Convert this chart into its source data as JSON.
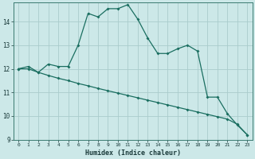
{
  "xlabel": "Humidex (Indice chaleur)",
  "bg_color": "#cce8e8",
  "line_color": "#1a6e60",
  "grid_color": "#aacccc",
  "xlim": [
    -0.5,
    23.5
  ],
  "ylim": [
    9.0,
    14.8
  ],
  "yticks": [
    9,
    10,
    11,
    12,
    13,
    14
  ],
  "xticks": [
    0,
    1,
    2,
    3,
    4,
    5,
    6,
    7,
    8,
    9,
    10,
    11,
    12,
    13,
    14,
    15,
    16,
    17,
    18,
    19,
    20,
    21,
    22,
    23
  ],
  "line1_x": [
    0,
    1,
    2,
    3,
    4,
    5,
    6,
    7,
    8,
    9,
    10,
    11,
    12,
    13,
    14,
    15,
    16,
    17,
    18,
    19,
    20,
    21,
    22,
    23
  ],
  "line1_y": [
    12.0,
    12.1,
    11.85,
    12.2,
    12.1,
    12.1,
    13.0,
    14.35,
    14.2,
    14.55,
    14.55,
    14.72,
    14.1,
    13.3,
    12.65,
    12.65,
    12.85,
    13.0,
    12.75,
    10.8,
    10.8,
    10.1,
    9.62,
    9.2
  ],
  "line2_x": [
    0,
    1,
    2,
    3,
    4,
    5,
    6,
    7,
    8,
    9,
    10,
    11,
    12,
    13,
    14,
    15,
    16,
    17,
    18,
    19,
    20,
    21,
    22,
    23
  ],
  "line2_y": [
    12.0,
    12.0,
    11.85,
    11.72,
    11.6,
    11.5,
    11.38,
    11.28,
    11.17,
    11.07,
    10.97,
    10.87,
    10.77,
    10.67,
    10.57,
    10.47,
    10.37,
    10.27,
    10.17,
    10.07,
    9.97,
    9.87,
    9.65,
    9.2
  ]
}
